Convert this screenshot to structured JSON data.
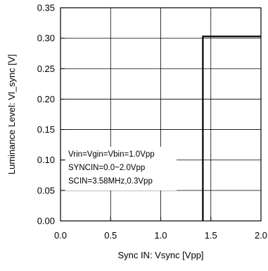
{
  "chart_data": {
    "type": "line",
    "xlabel": "Sync IN: Vsync [Vpp]",
    "ylabel": "Luminance Level: Vl_sync [V]",
    "xlim": [
      0.0,
      2.0
    ],
    "ylim": [
      0.0,
      0.35
    ],
    "x_ticks": [
      "0.0",
      "0.5",
      "1.0",
      "1.5",
      "2.0"
    ],
    "y_ticks": [
      "0.00",
      "0.05",
      "0.10",
      "0.15",
      "0.20",
      "0.25",
      "0.30",
      "0.35"
    ],
    "grid": true,
    "series": [
      {
        "x": [
          1.42,
          1.42,
          2.0
        ],
        "y": [
          0.0,
          0.303,
          0.303
        ]
      }
    ],
    "annotation_lines": [
      "Vrin=Vgin=Vbin=1.0Vpp",
      "SYNCIN=0.0~2.0Vpp",
      "SCIN=3.58MHz,0.3Vpp"
    ],
    "line_color": "#000000"
  }
}
